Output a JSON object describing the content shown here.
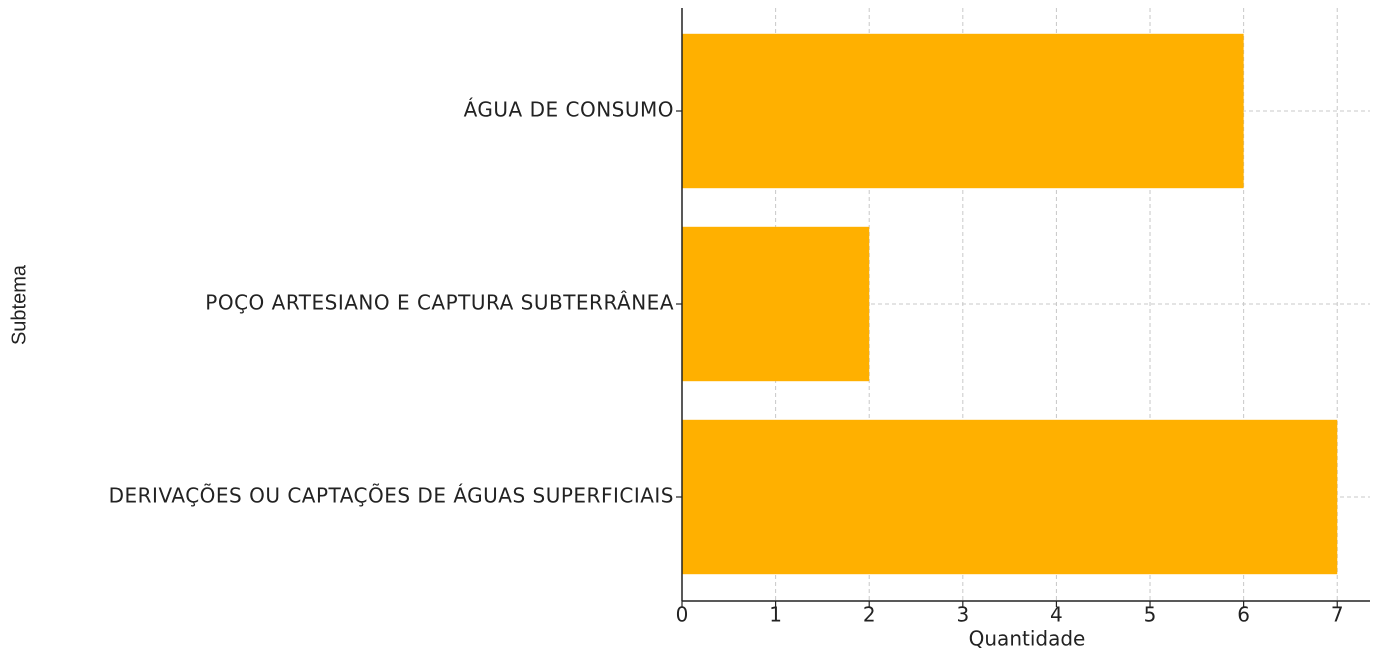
{
  "chart_data": {
    "type": "barh",
    "categories": [
      "ÁGUA DE CONSUMO",
      "POÇO ARTESIANO E CAPTURA SUBTERRÂNEA",
      "DERIVAÇÕES OU CAPTAÇÕES DE ÁGUAS SUPERFICIAIS"
    ],
    "values": [
      6,
      2,
      7
    ],
    "color": "#ffb000",
    "xlim": [
      0,
      7.35
    ],
    "xticks": [
      0,
      1,
      2,
      3,
      4,
      5,
      6,
      7
    ],
    "xlabel": "Quantidade",
    "ylabel": "Subtema",
    "grid": true
  }
}
